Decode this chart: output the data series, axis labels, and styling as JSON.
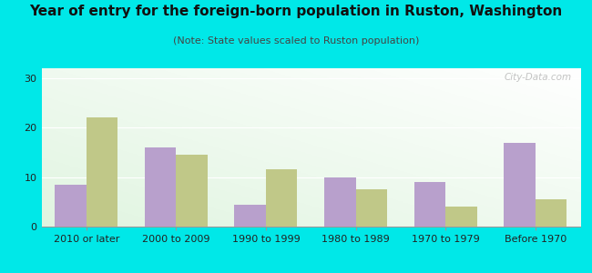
{
  "title": "Year of entry for the foreign-born population in Ruston, Washington",
  "subtitle": "(Note: State values scaled to Ruston population)",
  "categories": [
    "2010 or later",
    "2000 to 2009",
    "1990 to 1999",
    "1980 to 1989",
    "1970 to 1979",
    "Before 1970"
  ],
  "ruston_values": [
    8.5,
    16.0,
    4.5,
    10.0,
    9.0,
    17.0
  ],
  "washington_values": [
    22.0,
    14.5,
    11.5,
    7.5,
    4.0,
    5.5
  ],
  "ruston_color": "#b8a0cc",
  "washington_color": "#c0c888",
  "background_color": "#00e8e8",
  "ylim": [
    0,
    32
  ],
  "yticks": [
    0,
    10,
    20,
    30
  ],
  "bar_width": 0.35,
  "watermark": "City-Data.com",
  "title_fontsize": 11,
  "subtitle_fontsize": 8,
  "legend_fontsize": 9,
  "tick_fontsize": 8
}
